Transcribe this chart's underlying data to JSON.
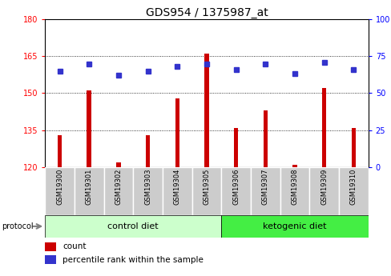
{
  "title": "GDS954 / 1375987_at",
  "samples": [
    "GSM19300",
    "GSM19301",
    "GSM19302",
    "GSM19303",
    "GSM19304",
    "GSM19305",
    "GSM19306",
    "GSM19307",
    "GSM19308",
    "GSM19309",
    "GSM19310"
  ],
  "bar_values": [
    133,
    151,
    122,
    133,
    148,
    166,
    136,
    143,
    121,
    152,
    136
  ],
  "dot_values": [
    65,
    70,
    62,
    65,
    68,
    70,
    66,
    70,
    63,
    71,
    66
  ],
  "bar_color": "#cc0000",
  "dot_color": "#3333cc",
  "ylim_left": [
    120,
    180
  ],
  "ylim_right": [
    0,
    100
  ],
  "yticks_left": [
    120,
    135,
    150,
    165,
    180
  ],
  "yticks_right": [
    0,
    25,
    50,
    75,
    100
  ],
  "control_indices": [
    0,
    1,
    2,
    3,
    4,
    5
  ],
  "ketogenic_indices": [
    6,
    7,
    8,
    9,
    10
  ],
  "control_label": "control diet",
  "ketogenic_label": "ketogenic diet",
  "protocol_label": "protocol",
  "legend_bar_label": "count",
  "legend_dot_label": "percentile rank within the sample",
  "control_bg": "#ccffcc",
  "ketogenic_bg": "#44ee44",
  "tick_bg": "#cccccc",
  "title_fontsize": 10,
  "tick_fontsize": 7,
  "sample_fontsize": 6,
  "legend_fontsize": 7.5,
  "proto_fontsize": 8
}
